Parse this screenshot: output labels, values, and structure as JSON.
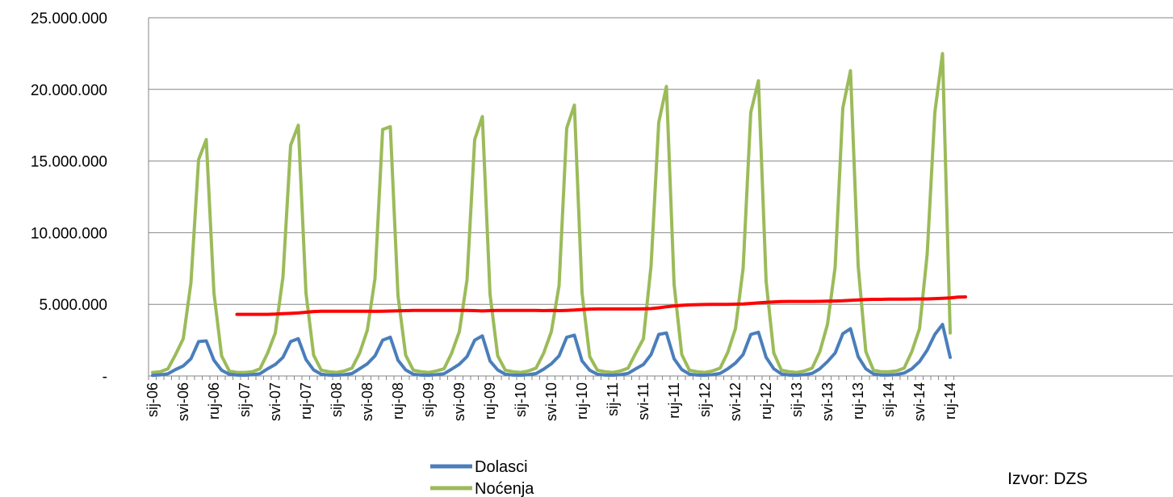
{
  "chart_data": {
    "type": "line",
    "ylim": [
      0,
      25000000
    ],
    "ytick_labels": [
      "-",
      "5.000.000",
      "10.000.000",
      "15.000.000",
      "20.000.000",
      "25.000.000"
    ],
    "x_tick_labels": [
      "sij-06",
      "svi-06",
      "ruj-06",
      "sij-07",
      "svi-07",
      "ruj-07",
      "sij-08",
      "svi-08",
      "ruj-08",
      "sij-09",
      "svi-09",
      "ruj-09",
      "sij-10",
      "svi-10",
      "ruj-10",
      "sij-11",
      "svi-11",
      "ruj-11",
      "sij-12",
      "svi-12",
      "ruj-12",
      "sij-13",
      "svi-13",
      "ruj-13",
      "sij-14",
      "svi-14",
      "ruj-14"
    ],
    "months_shown": 105,
    "grid": "horizontal",
    "legend_position": "bottom",
    "source_note": "Izvor: DZS",
    "series": [
      {
        "name": "Dolasci",
        "color": "#4a7ebb",
        "values": [
          40000,
          80000,
          150000,
          450000,
          700000,
          1200000,
          2400000,
          2450000,
          1100000,
          400000,
          120000,
          60000,
          50000,
          90000,
          160000,
          500000,
          800000,
          1300000,
          2400000,
          2600000,
          1150000,
          420000,
          120000,
          60000,
          50000,
          90000,
          170000,
          500000,
          850000,
          1400000,
          2500000,
          2700000,
          1100000,
          420000,
          120000,
          60000,
          50000,
          90000,
          160000,
          480000,
          820000,
          1350000,
          2500000,
          2800000,
          1050000,
          420000,
          120000,
          60000,
          50000,
          90000,
          170000,
          480000,
          850000,
          1400000,
          2700000,
          2850000,
          1050000,
          400000,
          120000,
          60000,
          50000,
          90000,
          180000,
          500000,
          800000,
          1500000,
          2900000,
          3000000,
          1200000,
          450000,
          130000,
          60000,
          50000,
          90000,
          180000,
          500000,
          900000,
          1500000,
          2900000,
          3050000,
          1300000,
          500000,
          140000,
          60000,
          50000,
          90000,
          180000,
          500000,
          1000000,
          1600000,
          2950000,
          3300000,
          1350000,
          500000,
          140000,
          60000,
          60000,
          100000,
          200000,
          500000,
          1000000,
          1800000,
          2900000,
          3600000,
          1300000
        ]
      },
      {
        "name": "Noćenja",
        "color": "#9bbb59",
        "values": [
          250000,
          300000,
          500000,
          1500000,
          2600000,
          6500000,
          15100000,
          16500000,
          5800000,
          1400000,
          350000,
          250000,
          250000,
          300000,
          500000,
          1600000,
          3000000,
          6900000,
          16100000,
          17500000,
          5800000,
          1450000,
          400000,
          300000,
          250000,
          350000,
          550000,
          1600000,
          3200000,
          6800000,
          17200000,
          17400000,
          5600000,
          1450000,
          400000,
          300000,
          250000,
          350000,
          500000,
          1600000,
          3100000,
          6700000,
          16500000,
          18100000,
          5700000,
          1400000,
          400000,
          300000,
          250000,
          350000,
          550000,
          1600000,
          3100000,
          6300000,
          17300000,
          18900000,
          5800000,
          1350000,
          400000,
          300000,
          250000,
          350000,
          550000,
          1600000,
          2600000,
          7700000,
          17700000,
          20200000,
          6400000,
          1500000,
          400000,
          300000,
          250000,
          350000,
          550000,
          1650000,
          3300000,
          7500000,
          18400000,
          20600000,
          6600000,
          1600000,
          400000,
          300000,
          250000,
          350000,
          550000,
          1700000,
          3600000,
          7600000,
          18700000,
          21300000,
          7700000,
          1700000,
          400000,
          300000,
          300000,
          350000,
          550000,
          1700000,
          3300000,
          8500000,
          18400000,
          22500000,
          3000000
        ]
      },
      {
        "color": "#ff0000",
        "start_month_index": 11,
        "values": [
          4300000,
          4300000,
          4300000,
          4300000,
          4300000,
          4320000,
          4350000,
          4370000,
          4400000,
          4450000,
          4500000,
          4520000,
          4520000,
          4520000,
          4520000,
          4520000,
          4520000,
          4520000,
          4510000,
          4520000,
          4530000,
          4550000,
          4560000,
          4570000,
          4580000,
          4580000,
          4580000,
          4580000,
          4580000,
          4580000,
          4580000,
          4560000,
          4540000,
          4560000,
          4570000,
          4570000,
          4570000,
          4570000,
          4570000,
          4570000,
          4560000,
          4570000,
          4560000,
          4580000,
          4600000,
          4640000,
          4670000,
          4680000,
          4680000,
          4680000,
          4680000,
          4680000,
          4680000,
          4690000,
          4700000,
          4760000,
          4830000,
          4880000,
          4930000,
          4960000,
          4980000,
          4990000,
          5000000,
          5000000,
          5000000,
          5010000,
          5030000,
          5060000,
          5100000,
          5140000,
          5170000,
          5190000,
          5200000,
          5200000,
          5200000,
          5200000,
          5210000,
          5220000,
          5230000,
          5250000,
          5280000,
          5310000,
          5330000,
          5350000,
          5350000,
          5360000,
          5360000,
          5360000,
          5370000,
          5380000,
          5380000,
          5400000,
          5420000,
          5450000,
          5500000,
          5520000
        ]
      }
    ]
  }
}
